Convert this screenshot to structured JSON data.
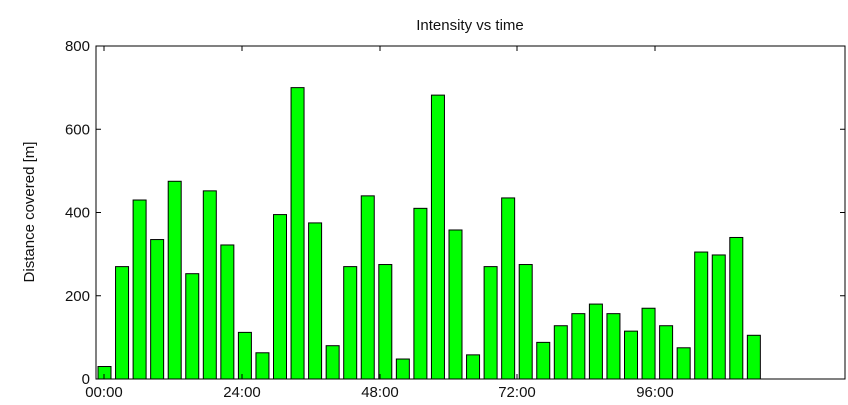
{
  "chart_data": {
    "type": "bar",
    "title": "Intensity vs time",
    "xlabel": "",
    "ylabel": "Distance covered [m]",
    "ylim": [
      0,
      800
    ],
    "yticks": [
      "0",
      "200",
      "400",
      "600",
      "800"
    ],
    "x_tick_labels": [
      "00:00",
      "24:00",
      "48:00",
      "72:00",
      "96:00"
    ],
    "x_tick_hours": [
      0,
      24,
      48,
      72,
      96
    ],
    "bar_interval_hours": 3,
    "bar_color": "#00ff00",
    "grid": false,
    "values": [
      30,
      270,
      430,
      335,
      475,
      253,
      452,
      322,
      112,
      63,
      395,
      700,
      375,
      80,
      270,
      440,
      275,
      48,
      410,
      682,
      358,
      58,
      270,
      435,
      275,
      88,
      128,
      157,
      180,
      157,
      115,
      170,
      128,
      75,
      305,
      298,
      340,
      105
    ]
  }
}
